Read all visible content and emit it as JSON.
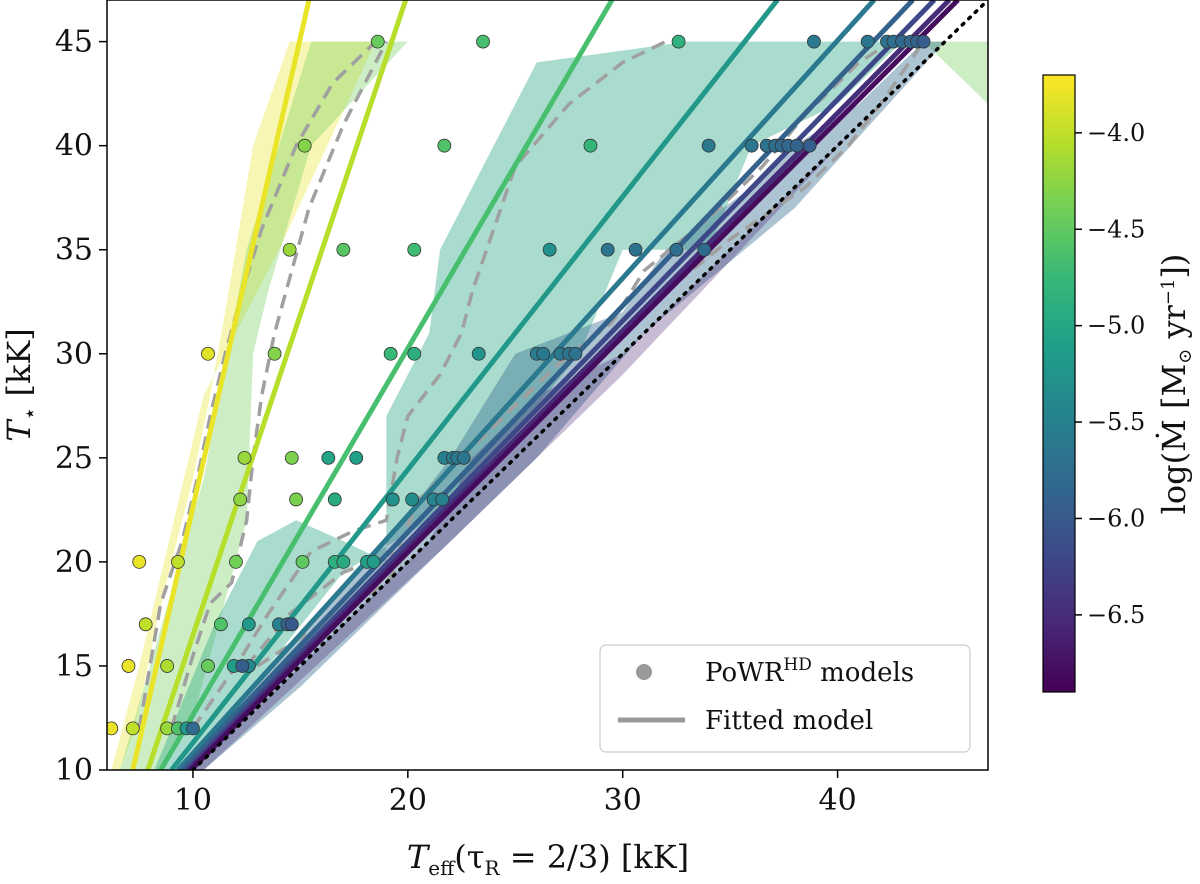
{
  "chart_data": {
    "type": "scatter",
    "xlabel": "T_eff(τ_R = 2/3) [kK]",
    "xlabel_parts": {
      "main": "T",
      "sub": "eff",
      "rest": "(τ",
      "sub2": "R",
      "rest2": " = 2/3) [kK]"
    },
    "ylabel": "T_⋆ [kK]",
    "ylabel_parts": {
      "main": "T",
      "sub": "⋆",
      "rest": " [kK]"
    },
    "xlim": [
      6,
      47
    ],
    "ylim": [
      10,
      47
    ],
    "xticks": [
      10,
      20,
      30,
      40
    ],
    "yticks": [
      10,
      15,
      20,
      25,
      30,
      35,
      40,
      45
    ],
    "colorbar": {
      "label": "log(Ṁ [M⊙ yr⁻¹])",
      "label_text": "log(Ṁ [M",
      "label_sub": "⊙",
      "label_text2": " yr",
      "label_sup": "−1",
      "label_text3": "])",
      "range": [
        -6.9,
        -3.7
      ],
      "ticks": [
        "−4.0",
        "−4.5",
        "−5.0",
        "−5.5",
        "−6.0",
        "−6.5"
      ],
      "tick_values": [
        -4.0,
        -4.5,
        -5.0,
        -5.5,
        -6.0,
        -6.5
      ],
      "colormap": [
        "#440154",
        "#482878",
        "#3e4989",
        "#31688e",
        "#26828e",
        "#1f9e89",
        "#35b779",
        "#6ece58",
        "#b5de2b",
        "#fde725"
      ]
    },
    "legend": {
      "position": "lower-right",
      "models_label": "PoWR",
      "models_label_sup": "HD",
      "models_label_rest": " models",
      "fit_label": "Fitted model"
    },
    "identity_line": {
      "style": "dotted",
      "color": "#000000"
    },
    "fitted_lines": [
      {
        "logM": -3.8,
        "x_at_y10": 7.2,
        "x_at_y47": 15.4
      },
      {
        "logM": -4.05,
        "x_at_y10": 7.9,
        "x_at_y47": 19.9
      },
      {
        "logM": -4.65,
        "x_at_y10": 8.5,
        "x_at_y47": 29.5
      },
      {
        "logM": -5.2,
        "x_at_y10": 9.0,
        "x_at_y47": 37.2
      },
      {
        "logM": -5.6,
        "x_at_y10": 9.3,
        "x_at_y47": 41.7
      },
      {
        "logM": -5.9,
        "x_at_y10": 9.5,
        "x_at_y47": 43.5
      },
      {
        "logM": -6.2,
        "x_at_y10": 9.7,
        "x_at_y47": 44.5
      },
      {
        "logM": -6.5,
        "x_at_y10": 9.8,
        "x_at_y47": 45.2
      },
      {
        "logM": -6.8,
        "x_at_y10": 9.9,
        "x_at_y47": 45.6
      }
    ],
    "regions": [
      {
        "logM": -3.8,
        "opacity": 0.35,
        "points": [
          [
            6.2,
            10
          ],
          [
            7.5,
            15
          ],
          [
            10.5,
            28
          ],
          [
            14,
            35
          ],
          [
            18.5,
            45
          ],
          [
            14.5,
            45
          ],
          [
            12.8,
            40
          ],
          [
            11.5,
            32
          ],
          [
            10.8,
            28
          ],
          [
            10,
            24
          ],
          [
            9,
            20
          ],
          [
            8.3,
            17
          ],
          [
            7.3,
            12
          ],
          [
            6.6,
            10
          ]
        ]
      },
      {
        "logM": -4.4,
        "opacity": 0.35,
        "points": [
          [
            6.6,
            10
          ],
          [
            8.0,
            15
          ],
          [
            10.5,
            24
          ],
          [
            12.5,
            35
          ],
          [
            15.5,
            45
          ],
          [
            47,
            45
          ],
          [
            47,
            42
          ],
          [
            44,
            45
          ],
          [
            35,
            45
          ],
          [
            20,
            45
          ],
          [
            15.5,
            40
          ],
          [
            13.5,
            33
          ],
          [
            12.8,
            30
          ],
          [
            12.5,
            22
          ],
          [
            11.2,
            17
          ],
          [
            10,
            12.5
          ],
          [
            8.5,
            10
          ]
        ]
      },
      {
        "logM": -5.0,
        "opacity": 0.4,
        "points": [
          [
            8.2,
            10
          ],
          [
            11,
            17
          ],
          [
            13,
            21
          ],
          [
            14.8,
            22
          ],
          [
            17,
            21
          ],
          [
            19,
            20
          ],
          [
            19,
            27
          ],
          [
            21,
            31
          ],
          [
            21.5,
            35
          ],
          [
            24,
            40
          ],
          [
            26,
            44
          ],
          [
            33,
            45
          ],
          [
            43,
            45
          ],
          [
            40,
            42
          ],
          [
            36,
            40
          ],
          [
            34,
            35
          ],
          [
            30,
            35
          ],
          [
            28,
            30
          ],
          [
            24,
            25
          ],
          [
            21,
            22
          ],
          [
            17,
            19.5
          ],
          [
            13.5,
            15
          ],
          [
            10,
            10
          ]
        ]
      },
      {
        "logM": -5.8,
        "opacity": 0.4,
        "points": [
          [
            9.5,
            10
          ],
          [
            13.5,
            15
          ],
          [
            18,
            20
          ],
          [
            20.5,
            23
          ],
          [
            22,
            25
          ],
          [
            25,
            30
          ],
          [
            30,
            32
          ],
          [
            32,
            35
          ],
          [
            36,
            38
          ],
          [
            38,
            40
          ],
          [
            41,
            42
          ],
          [
            44,
            45
          ],
          [
            45,
            45
          ],
          [
            38,
            37
          ],
          [
            31,
            31
          ],
          [
            26,
            25
          ],
          [
            20,
            19
          ],
          [
            15,
            14
          ],
          [
            10.5,
            10
          ]
        ]
      },
      {
        "logM": -6.6,
        "opacity": 0.3,
        "points": [
          [
            10,
            10
          ],
          [
            21,
            21
          ],
          [
            23,
            25
          ],
          [
            26,
            28
          ],
          [
            30,
            30
          ],
          [
            36,
            36
          ],
          [
            44,
            44
          ],
          [
            45,
            45
          ],
          [
            41,
            41
          ],
          [
            30,
            29
          ],
          [
            22,
            21
          ],
          [
            10.5,
            10
          ]
        ]
      }
    ],
    "contours": [
      [
        [
          7.5,
          12
        ],
        [
          8,
          15
        ],
        [
          8.5,
          18
        ],
        [
          9.5,
          21
        ],
        [
          10.2,
          24
        ],
        [
          10.8,
          27
        ],
        [
          11.5,
          30
        ],
        [
          12.3,
          33
        ],
        [
          13.2,
          36
        ],
        [
          14.8,
          40
        ],
        [
          16.5,
          43
        ],
        [
          18.5,
          45
        ]
      ],
      [
        [
          9,
          12
        ],
        [
          10,
          15.5
        ],
        [
          10.8,
          18
        ],
        [
          11.8,
          19
        ],
        [
          12.5,
          22
        ],
        [
          12.8,
          25
        ],
        [
          13.2,
          28
        ],
        [
          13.8,
          31
        ],
        [
          14.6,
          34
        ],
        [
          15.4,
          37
        ],
        [
          17,
          41
        ],
        [
          18.5,
          44
        ],
        [
          19,
          45
        ]
      ],
      [
        [
          10,
          12
        ],
        [
          12,
          15
        ],
        [
          13.5,
          17.5
        ],
        [
          15.5,
          20.5
        ],
        [
          17.5,
          21.5
        ],
        [
          19,
          22
        ],
        [
          19.5,
          25
        ],
        [
          20,
          27
        ],
        [
          21.5,
          29
        ],
        [
          22.5,
          31
        ],
        [
          23,
          33
        ],
        [
          24,
          36
        ],
        [
          25,
          39
        ],
        [
          27.5,
          42
        ],
        [
          30,
          44
        ],
        [
          32,
          45
        ]
      ],
      [
        [
          12.5,
          15
        ],
        [
          14.5,
          17.5
        ],
        [
          17,
          19.5
        ],
        [
          19.5,
          20.5
        ],
        [
          20.5,
          23
        ],
        [
          22.5,
          25
        ],
        [
          24.5,
          27
        ],
        [
          27,
          29.5
        ],
        [
          29.5,
          31.5
        ],
        [
          31,
          34
        ],
        [
          34,
          36.5
        ],
        [
          36.5,
          39
        ],
        [
          38.5,
          41.5
        ],
        [
          41,
          44
        ],
        [
          42.5,
          45
        ]
      ],
      [
        [
          13,
          15
        ],
        [
          16,
          17
        ],
        [
          19,
          19
        ],
        [
          21,
          22
        ],
        [
          23,
          24
        ],
        [
          25,
          26
        ],
        [
          27.5,
          28.5
        ],
        [
          29,
          30
        ],
        [
          32,
          33
        ],
        [
          35,
          35.5
        ],
        [
          38.5,
          38
        ],
        [
          40.5,
          40
        ],
        [
          42,
          42
        ],
        [
          43,
          43.5
        ],
        [
          44,
          45
        ]
      ]
    ],
    "points": [
      [
        6.2,
        12,
        -3.8
      ],
      [
        7.0,
        15,
        -3.8
      ],
      [
        7.5,
        20,
        -3.8
      ],
      [
        10.7,
        30,
        -3.85
      ],
      [
        7.2,
        12,
        -4.0
      ],
      [
        7.8,
        17,
        -4.0
      ],
      [
        9.3,
        20,
        -4.0
      ],
      [
        8.8,
        15,
        -4.1
      ],
      [
        8.8,
        12,
        -4.2
      ],
      [
        12.4,
        25,
        -4.2
      ],
      [
        12.2,
        23,
        -4.25
      ],
      [
        14.5,
        35,
        -4.2
      ],
      [
        15.2,
        40,
        -4.3
      ],
      [
        13.8,
        30,
        -4.3
      ],
      [
        14.6,
        25,
        -4.35
      ],
      [
        14.8,
        23,
        -4.35
      ],
      [
        12.0,
        20,
        -4.4
      ],
      [
        10.7,
        15,
        -4.45
      ],
      [
        11.3,
        17,
        -4.6
      ],
      [
        9.3,
        12,
        -4.6
      ],
      [
        18.6,
        45,
        -4.45
      ],
      [
        15.1,
        20,
        -4.5
      ],
      [
        17.0,
        35,
        -4.55
      ],
      [
        21.7,
        40,
        -4.6
      ],
      [
        20.3,
        35,
        -4.7
      ],
      [
        23.5,
        45,
        -4.65
      ],
      [
        19.2,
        30,
        -4.75
      ],
      [
        20.3,
        30,
        -4.9
      ],
      [
        16.6,
        20,
        -4.9
      ],
      [
        17.0,
        20,
        -4.95
      ],
      [
        16.6,
        23,
        -4.95
      ],
      [
        16.3,
        25,
        -5.05
      ],
      [
        17.6,
        25,
        -5.1
      ],
      [
        18.1,
        20,
        -5.1
      ],
      [
        18.4,
        20,
        -5.15
      ],
      [
        11.9,
        15,
        -5.15
      ],
      [
        12.6,
        17,
        -5.2
      ],
      [
        9.7,
        12,
        -5.2
      ],
      [
        28.5,
        40,
        -4.8
      ],
      [
        32.6,
        45,
        -4.85
      ],
      [
        23.3,
        30,
        -5.25
      ],
      [
        26.6,
        35,
        -5.3
      ],
      [
        19.3,
        23,
        -5.3
      ],
      [
        20.2,
        23,
        -5.35
      ],
      [
        21.2,
        23,
        -5.45
      ],
      [
        21.6,
        23,
        -5.5
      ],
      [
        21.7,
        25,
        -5.5
      ],
      [
        22.1,
        25,
        -5.55
      ],
      [
        22.3,
        25,
        -5.6
      ],
      [
        22.6,
        25,
        -5.65
      ],
      [
        12.6,
        15,
        -5.45
      ],
      [
        14.0,
        17,
        -5.5
      ],
      [
        26.0,
        30,
        -5.55
      ],
      [
        26.3,
        30,
        -5.6
      ],
      [
        27.1,
        30,
        -5.6
      ],
      [
        27.5,
        30,
        -5.65
      ],
      [
        27.8,
        30,
        -5.7
      ],
      [
        29.3,
        35,
        -5.65
      ],
      [
        30.6,
        35,
        -5.7
      ],
      [
        32.5,
        35,
        -5.75
      ],
      [
        33.8,
        35,
        -5.8
      ],
      [
        34.0,
        40,
        -5.6
      ],
      [
        36.0,
        40,
        -5.65
      ],
      [
        36.7,
        40,
        -5.7
      ],
      [
        37.1,
        40,
        -5.75
      ],
      [
        37.4,
        40,
        -5.8
      ],
      [
        37.7,
        40,
        -5.85
      ],
      [
        38.1,
        40,
        -5.9
      ],
      [
        38.7,
        40,
        -5.95
      ],
      [
        38.9,
        45,
        -5.6
      ],
      [
        41.4,
        45,
        -5.65
      ],
      [
        42.3,
        45,
        -5.7
      ],
      [
        42.6,
        45,
        -5.75
      ],
      [
        43.0,
        45,
        -5.8
      ],
      [
        43.4,
        45,
        -5.85
      ],
      [
        43.7,
        45,
        -5.9
      ],
      [
        44.0,
        45,
        -5.95
      ],
      [
        10.0,
        12,
        -5.8
      ],
      [
        14.4,
        17,
        -5.9
      ],
      [
        14.6,
        17,
        -6.0
      ],
      [
        12.3,
        15,
        -5.95
      ]
    ]
  }
}
